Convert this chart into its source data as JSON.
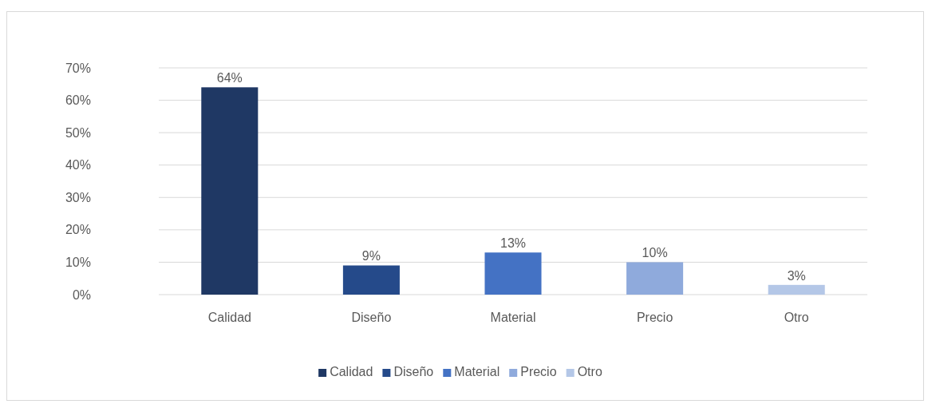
{
  "chart_data": {
    "type": "bar",
    "categories": [
      "Calidad",
      "Diseño",
      "Material",
      "Precio",
      "Otro"
    ],
    "series": [
      {
        "name": "Calidad",
        "color": "#1f3864",
        "values": [
          64,
          null,
          null,
          null,
          null
        ],
        "value_labels": [
          "64%",
          null,
          null,
          null,
          null
        ]
      },
      {
        "name": "Diseño",
        "color": "#254a8a",
        "values": [
          null,
          9,
          null,
          null,
          null
        ],
        "value_labels": [
          null,
          "9%",
          null,
          null,
          null
        ]
      },
      {
        "name": "Material",
        "color": "#4472c4",
        "values": [
          null,
          null,
          13,
          null,
          null
        ],
        "value_labels": [
          null,
          null,
          "13%",
          null,
          null
        ]
      },
      {
        "name": "Precio",
        "color": "#8faadc",
        "values": [
          null,
          null,
          null,
          10,
          null
        ],
        "value_labels": [
          null,
          null,
          null,
          "10%",
          null
        ]
      },
      {
        "name": "Otro",
        "color": "#b4c7e7",
        "values": [
          null,
          null,
          null,
          null,
          3
        ],
        "value_labels": [
          null,
          null,
          null,
          null,
          "3%"
        ]
      }
    ],
    "ylim": [
      0,
      70
    ],
    "yticks": [
      {
        "value": 0,
        "label": "0%"
      },
      {
        "value": 10,
        "label": "10%"
      },
      {
        "value": 20,
        "label": "20%"
      },
      {
        "value": 30,
        "label": "30%"
      },
      {
        "value": 40,
        "label": "40%"
      },
      {
        "value": 50,
        "label": "50%"
      },
      {
        "value": 60,
        "label": "60%"
      },
      {
        "value": 70,
        "label": "70%"
      }
    ],
    "grid": "y",
    "legend": "bottom"
  }
}
